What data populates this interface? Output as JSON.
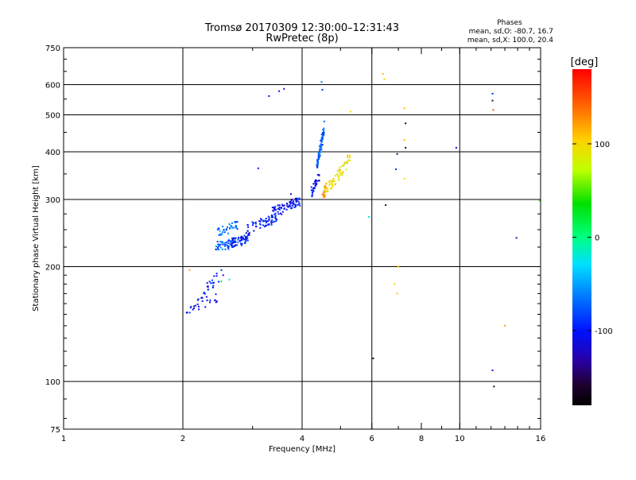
{
  "title": {
    "line1": "Tromsø 20170309 12:30:00–12:31:43",
    "line2": "RwPretec (8p)"
  },
  "stats": {
    "heading": "Phases",
    "line_o": "mean, sd,O: -80.7, 16.7",
    "line_x": "mean, sd,X: 100.0, 20.4"
  },
  "chart_data": {
    "type": "scatter",
    "xlabel": "Frequency [MHz]",
    "ylabel": "Stationary phase Virtual Height [km]",
    "xscale": "log",
    "yscale": "log",
    "xlim": [
      1,
      16
    ],
    "ylim": [
      75,
      750
    ],
    "grid": true,
    "xticks": [
      1,
      2,
      4,
      6,
      8,
      10,
      16
    ],
    "xtick_labels": [
      "1",
      "2",
      "4",
      "6",
      "8",
      "10",
      "16"
    ],
    "x_gridlines": [
      2,
      4,
      6,
      10
    ],
    "xticks_minor": [
      3,
      5,
      7,
      9,
      11,
      12,
      13,
      14,
      15
    ],
    "yticks": [
      75,
      100,
      200,
      300,
      400,
      500,
      600,
      750
    ],
    "ytick_labels": [
      "75",
      "100",
      "200",
      "300",
      "400",
      "500",
      "600",
      "750"
    ],
    "y_gridlines": [
      100,
      200,
      300,
      400,
      500,
      600
    ],
    "yticks_minor": [
      80,
      90,
      110,
      120,
      130,
      140,
      150,
      160,
      170,
      180,
      190,
      225,
      250,
      275,
      350,
      450,
      550,
      650,
      700
    ],
    "colorbar": {
      "label": "[deg]",
      "range": [
        -180,
        180
      ],
      "ticks": [
        100,
        0,
        -100
      ],
      "tick_labels": [
        "100",
        "0",
        "-100"
      ]
    },
    "traces": [
      {
        "fmin": 2.03,
        "fmax": 2.45,
        "hmin": 150,
        "hmax": 172,
        "phase": -105,
        "n": 28
      },
      {
        "fmin": 2.25,
        "fmax": 2.55,
        "hmin": 165,
        "hmax": 205,
        "phase": -100,
        "n": 22
      },
      {
        "fmin": 2.42,
        "fmax": 2.95,
        "hmin": 222,
        "hmax": 242,
        "phase": -75,
        "n": 95
      },
      {
        "fmin": 2.45,
        "fmax": 2.75,
        "hmin": 242,
        "hmax": 262,
        "phase": -65,
        "n": 35
      },
      {
        "fmin": 2.65,
        "fmax": 2.95,
        "hmin": 225,
        "hmax": 245,
        "phase": -110,
        "n": 25
      },
      {
        "fmin": 2.9,
        "fmax": 3.45,
        "hmin": 248,
        "hmax": 272,
        "phase": -95,
        "n": 55
      },
      {
        "fmin": 3.35,
        "fmax": 3.95,
        "hmin": 272,
        "hmax": 302,
        "phase": -100,
        "n": 75
      },
      {
        "fmin": 4.22,
        "fmax": 4.42,
        "hmin": 305,
        "hmax": 355,
        "phase": -105,
        "n": 35
      },
      {
        "fmin": 4.35,
        "fmax": 4.55,
        "hmin": 345,
        "hmax": 485,
        "phase": -75,
        "n": 75
      },
      {
        "fmin": 4.5,
        "fmax": 4.62,
        "hmin": 300,
        "hmax": 330,
        "phase": 125,
        "n": 22
      },
      {
        "fmin": 4.55,
        "fmax": 4.85,
        "hmin": 315,
        "hmax": 340,
        "phase": 100,
        "n": 20
      },
      {
        "fmin": 4.75,
        "fmax": 5.3,
        "hmin": 320,
        "hmax": 400,
        "phase": 95,
        "n": 45
      }
    ],
    "points": [
      [
        2.08,
        196,
        120
      ],
      [
        2.5,
        183,
        20
      ],
      [
        2.62,
        185,
        -25
      ],
      [
        3.1,
        362,
        -100
      ],
      [
        3.3,
        560,
        -110
      ],
      [
        3.5,
        577,
        -115
      ],
      [
        3.6,
        585,
        -110
      ],
      [
        3.75,
        310,
        -110
      ],
      [
        4.48,
        610,
        -60
      ],
      [
        4.5,
        582,
        -90
      ],
      [
        5.3,
        510,
        100
      ],
      [
        5.9,
        270,
        -20
      ],
      [
        6.05,
        115,
        -160
      ],
      [
        6.4,
        640,
        110
      ],
      [
        6.45,
        620,
        100
      ],
      [
        6.5,
        290,
        -160
      ],
      [
        6.95,
        395,
        -150
      ],
      [
        6.9,
        360,
        -90
      ],
      [
        6.85,
        180,
        100
      ],
      [
        7.0,
        200,
        110
      ],
      [
        6.95,
        170,
        110
      ],
      [
        7.25,
        520,
        110
      ],
      [
        7.3,
        475,
        -160
      ],
      [
        7.25,
        430,
        110
      ],
      [
        7.3,
        410,
        -160
      ],
      [
        7.25,
        340,
        100
      ],
      [
        9.8,
        410,
        -120
      ],
      [
        12.1,
        568,
        -90
      ],
      [
        12.1,
        545,
        -160
      ],
      [
        12.15,
        515,
        150
      ],
      [
        12.1,
        107,
        -110
      ],
      [
        12.2,
        97,
        -160
      ],
      [
        13.0,
        140,
        120
      ],
      [
        13.9,
        238,
        -130
      ],
      [
        15.9,
        298,
        50
      ]
    ]
  }
}
